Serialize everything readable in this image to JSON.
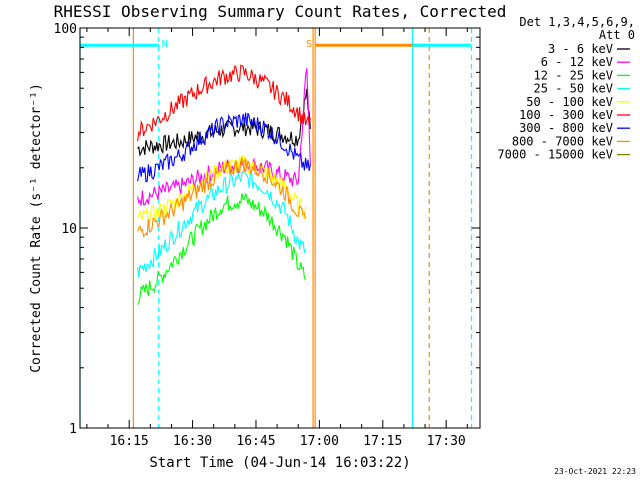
{
  "chart_data": {
    "type": "line",
    "title": "RHESSI Observing Summary Count Rates, Corrected",
    "xlabel": "Start Time (04-Jun-14 16:03:22)",
    "ylabel": "Corrected Count Rate (s⁻¹ detector⁻¹)",
    "yscale": "log",
    "ylim": [
      1,
      100
    ],
    "xlim": [
      "16:03:22",
      "17:38:00"
    ],
    "x_tick_labels": [
      "16:15",
      "16:30",
      "16:45",
      "17:00",
      "17:15",
      "17:30"
    ],
    "y_tick_labels": [
      "1",
      "10",
      "100"
    ],
    "grid": false,
    "legend_placement": "right",
    "legend_header": [
      "Det 1,3,4,5,6,9,",
      "Att 0"
    ],
    "series": [
      {
        "name": "3 - 6 keV",
        "color": "#000000",
        "x": [
          "16:17",
          "16:22",
          "16:27",
          "16:32",
          "16:37",
          "16:42",
          "16:47",
          "16:52",
          "16:55",
          "16:57",
          "16:58"
        ],
        "y": [
          25,
          26,
          27,
          29,
          31,
          32,
          31,
          29,
          28,
          48,
          28
        ]
      },
      {
        "name": "6 - 12 keV",
        "color": "#ff00ff",
        "x": [
          "16:17",
          "16:22",
          "16:27",
          "16:32",
          "16:37",
          "16:42",
          "16:47",
          "16:52",
          "16:55",
          "16:57",
          "16:58"
        ],
        "y": [
          14,
          15,
          16,
          18,
          20,
          21,
          20,
          18,
          17,
          65,
          18
        ]
      },
      {
        "name": "12 - 25 keV",
        "color": "#00ff00",
        "x": [
          "16:17",
          "16:22",
          "16:27",
          "16:32",
          "16:37",
          "16:42",
          "16:47",
          "16:52",
          "16:55",
          "16:57"
        ],
        "y": [
          4.5,
          5.5,
          7.5,
          10,
          13,
          14,
          12,
          9,
          6.5,
          5.5
        ]
      },
      {
        "name": "25 - 50 keV",
        "color": "#00ffff",
        "x": [
          "16:17",
          "16:22",
          "16:27",
          "16:32",
          "16:37",
          "16:42",
          "16:47",
          "16:52",
          "16:55",
          "16:57"
        ],
        "y": [
          6,
          7.5,
          10,
          13,
          16,
          18,
          16,
          12,
          8.5,
          7.5
        ]
      },
      {
        "name": "50 - 100 keV",
        "color": "#ffff00",
        "x": [
          "16:17",
          "16:22",
          "16:27",
          "16:32",
          "16:37",
          "16:42",
          "16:47",
          "16:52",
          "16:55",
          "16:57"
        ],
        "y": [
          11,
          12,
          14,
          17,
          20,
          21,
          19,
          16,
          13,
          12
        ]
      },
      {
        "name": "100 - 300 keV",
        "color": "#ff0000",
        "x": [
          "16:17",
          "16:22",
          "16:27",
          "16:32",
          "16:37",
          "16:42",
          "16:47",
          "16:52",
          "16:55",
          "16:57",
          "16:58"
        ],
        "y": [
          30,
          35,
          42,
          50,
          57,
          60,
          53,
          44,
          38,
          33,
          33
        ]
      },
      {
        "name": "300 - 800 keV",
        "color": "#0000ff",
        "x": [
          "16:17",
          "16:22",
          "16:27",
          "16:32",
          "16:37",
          "16:42",
          "16:47",
          "16:52",
          "16:55",
          "16:57",
          "16:58"
        ],
        "y": [
          18,
          20,
          23,
          28,
          33,
          35,
          32,
          26,
          22,
          20,
          20
        ]
      },
      {
        "name": "800 - 7000 keV",
        "color": "#ff8c00",
        "x": [
          "16:17",
          "16:22",
          "16:27",
          "16:32",
          "16:37",
          "16:42",
          "16:47",
          "16:52",
          "16:55",
          "16:57"
        ],
        "y": [
          9.5,
          11,
          13,
          16,
          19,
          21,
          19,
          15,
          12,
          10.5
        ]
      },
      {
        "name": "7000 - 15000 keV",
        "color": "#808000",
        "x": [],
        "y": []
      }
    ],
    "annotations": [
      {
        "label": "N",
        "color": "#00ffff",
        "bar_from": "16:03:22",
        "bar_to": "16:22",
        "marker_at": "16:22"
      },
      {
        "label": "S",
        "color": "#ff8c00",
        "bar_from": "16:59",
        "bar_to": "17:25",
        "marker_at": "16:59"
      },
      {
        "label": "",
        "color": "#00ffff",
        "bar_from": "17:22",
        "bar_to": "17:36",
        "marker_at": "17:36"
      }
    ],
    "vertical_lines": [
      {
        "x": "16:03:22",
        "color": "#00ffff",
        "style": "solid"
      },
      {
        "x": "16:22",
        "color": "#00ffff",
        "style": "dashed"
      },
      {
        "x": "16:16",
        "color": "#ff8c00",
        "style": "solid"
      },
      {
        "x": "16:58:30",
        "color": "#ff8c00",
        "style": "solid"
      },
      {
        "x": "16:59",
        "color": "#ff8c00",
        "style": "solid"
      },
      {
        "x": "17:22",
        "color": "#00ffff",
        "style": "solid"
      },
      {
        "x": "17:26",
        "color": "#ff8c00",
        "style": "dashed"
      },
      {
        "x": "17:36",
        "color": "#00ffff",
        "style": "dashed"
      }
    ]
  },
  "footer": {
    "timestamp": "23-Oct-2021 22:23"
  }
}
